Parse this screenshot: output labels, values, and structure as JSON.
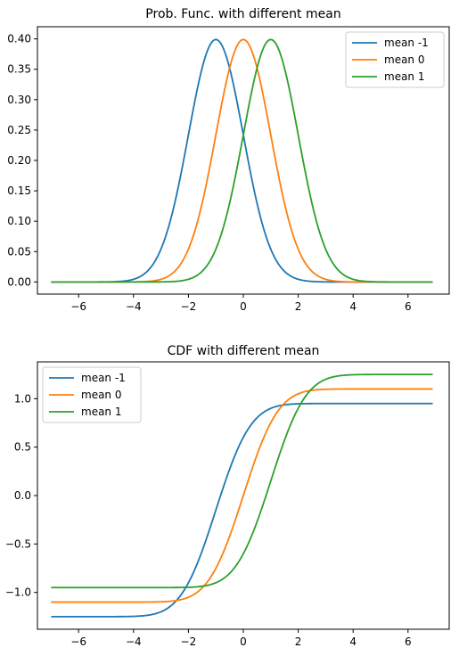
{
  "colors": {
    "series_0": "#1f77b4",
    "series_1": "#ff7f0e",
    "series_2": "#2ca02c"
  },
  "chart_data": [
    {
      "type": "line",
      "title": "Prob. Func. with different mean",
      "xlim": [
        -7.5,
        7.5
      ],
      "ylim": [
        -0.02,
        0.42
      ],
      "xticks": [
        -6,
        -4,
        -2,
        0,
        2,
        4,
        6
      ],
      "xtick_labels": [
        "−6",
        "−4",
        "−2",
        "0",
        "2",
        "4",
        "6"
      ],
      "yticks": [
        0.0,
        0.05,
        0.1,
        0.15,
        0.2,
        0.25,
        0.3,
        0.35,
        0.4
      ],
      "ytick_labels": [
        "0.00",
        "0.05",
        "0.10",
        "0.15",
        "0.20",
        "0.25",
        "0.30",
        "0.35",
        "0.40"
      ],
      "grid": false,
      "legend": "top-right",
      "series": [
        {
          "name": "mean -1",
          "mean": -1,
          "sigma": 1,
          "x_range": [
            -7,
            6.9
          ],
          "function": "normal_pdf"
        },
        {
          "name": "mean 0",
          "mean": 0,
          "sigma": 1,
          "x_range": [
            -7,
            6.9
          ],
          "function": "normal_pdf"
        },
        {
          "name": "mean 1",
          "mean": 1,
          "sigma": 1,
          "x_range": [
            -7,
            6.9
          ],
          "function": "normal_pdf"
        }
      ]
    },
    {
      "type": "line",
      "title": "CDF with different mean",
      "xlim": [
        -7.5,
        7.5
      ],
      "ylim": [
        -1.38,
        1.38
      ],
      "xticks": [
        -6,
        -4,
        -2,
        0,
        2,
        4,
        6
      ],
      "xtick_labels": [
        "−6",
        "−4",
        "−2",
        "0",
        "2",
        "4",
        "6"
      ],
      "yticks": [
        -1.0,
        -0.5,
        0.0,
        0.5,
        1.0
      ],
      "ytick_labels": [
        "−1.0",
        "−0.5",
        "0.0",
        "0.5",
        "1.0"
      ],
      "grid": false,
      "legend": "top-left",
      "series": [
        {
          "name": "mean -1",
          "mean": -1,
          "sigma": 1,
          "low": -1.25,
          "high": 0.95,
          "x_range": [
            -7,
            6.9
          ],
          "function": "scaled_normal_cdf"
        },
        {
          "name": "mean 0",
          "mean": 0,
          "sigma": 1,
          "low": -1.1,
          "high": 1.1,
          "x_range": [
            -7,
            6.9
          ],
          "function": "scaled_normal_cdf"
        },
        {
          "name": "mean 1",
          "mean": 1,
          "sigma": 1,
          "low": -0.95,
          "high": 1.25,
          "x_range": [
            -7,
            6.9
          ],
          "function": "scaled_normal_cdf"
        }
      ]
    }
  ]
}
